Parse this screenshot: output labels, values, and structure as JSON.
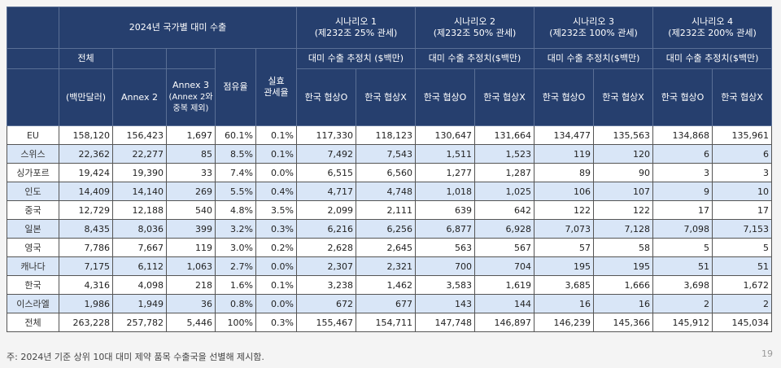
{
  "header": {
    "group_title": "2024년 국가별 대미 수출",
    "total_label": "전체",
    "total_unit": "(백만달러)",
    "annex2": "Annex 2",
    "annex3": "Annex 3",
    "annex3_note1": "(Annex 2와",
    "annex3_note2": "중복 제외)",
    "share": "점유율",
    "tariff1": "실효",
    "tariff2": "관세율",
    "scenarios": [
      {
        "title": "시나리오 1",
        "sub": "(제232조 25% 관세)",
        "est": "대미 수출 추정치 ($백만)",
        "o": "한국 협상O",
        "x": "한국 협상X"
      },
      {
        "title": "시나리오 2",
        "sub": "(제232조 50% 관세)",
        "est": "대미 수출 추정치($백만)",
        "o": "한국 협상O",
        "x": "한국 협상X"
      },
      {
        "title": "시나리오 3",
        "sub": "(제232조 100% 관세)",
        "est": "대미 수출 추정치($백만)",
        "o": "한국 협상O",
        "x": "한국 협상X"
      },
      {
        "title": "시나리오 4",
        "sub": "(제232조 200% 관세)",
        "est": "대미 수출 추정치($백만)",
        "o": "한국 협상O",
        "x": "한국 협상X"
      }
    ]
  },
  "rows": [
    [
      "EU",
      "158,120",
      "156,423",
      "1,697",
      "60.1%",
      "0.1%",
      "117,330",
      "118,123",
      "130,647",
      "131,664",
      "134,477",
      "135,563",
      "134,868",
      "135,961"
    ],
    [
      "스위스",
      "22,362",
      "22,277",
      "85",
      "8.5%",
      "0.1%",
      "7,492",
      "7,543",
      "1,511",
      "1,523",
      "119",
      "120",
      "6",
      "6"
    ],
    [
      "싱가포르",
      "19,424",
      "19,390",
      "33",
      "7.4%",
      "0.0%",
      "6,515",
      "6,560",
      "1,277",
      "1,287",
      "89",
      "90",
      "3",
      "3"
    ],
    [
      "인도",
      "14,409",
      "14,140",
      "269",
      "5.5%",
      "0.4%",
      "4,717",
      "4,748",
      "1,018",
      "1,025",
      "106",
      "107",
      "9",
      "10"
    ],
    [
      "중국",
      "12,729",
      "12,188",
      "540",
      "4.8%",
      "3.5%",
      "2,099",
      "2,111",
      "639",
      "642",
      "122",
      "122",
      "17",
      "17"
    ],
    [
      "일본",
      "8,435",
      "8,036",
      "399",
      "3.2%",
      "0.3%",
      "6,216",
      "6,256",
      "6,877",
      "6,928",
      "7,073",
      "7,128",
      "7,098",
      "7,153"
    ],
    [
      "영국",
      "7,786",
      "7,667",
      "119",
      "3.0%",
      "0.2%",
      "2,628",
      "2,645",
      "563",
      "567",
      "57",
      "58",
      "5",
      "5"
    ],
    [
      "캐나다",
      "7,175",
      "6,112",
      "1,063",
      "2.7%",
      "0.0%",
      "2,307",
      "2,321",
      "700",
      "704",
      "195",
      "195",
      "51",
      "51"
    ],
    [
      "한국",
      "4,316",
      "4,098",
      "218",
      "1.6%",
      "0.1%",
      "3,238",
      "1,462",
      "3,583",
      "1,619",
      "3,685",
      "1,666",
      "3,698",
      "1,672"
    ],
    [
      "이스라엘",
      "1,986",
      "1,949",
      "36",
      "0.8%",
      "0.0%",
      "672",
      "677",
      "143",
      "144",
      "16",
      "16",
      "2",
      "2"
    ],
    [
      "전체",
      "263,228",
      "257,782",
      "5,446",
      "100%",
      "0.3%",
      "155,467",
      "154,711",
      "147,748",
      "146,897",
      "146,239",
      "145,366",
      "145,912",
      "145,034"
    ]
  ],
  "footnote": "주: 2024년 기준 상위 10대 대미 제약 품목 수출국을 선별해 제시함.",
  "page_number": "19",
  "colors": {
    "header_bg": "#263f6e",
    "alt_row_bg": "#d9e6f7"
  }
}
